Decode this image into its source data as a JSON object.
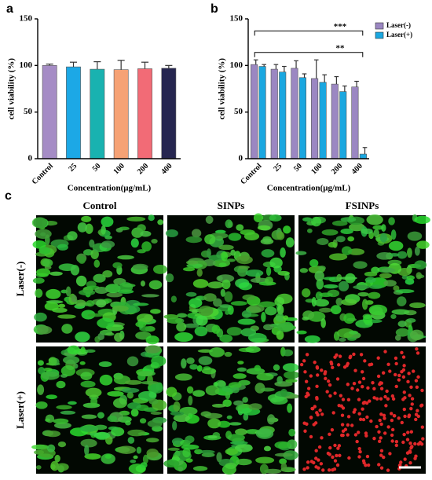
{
  "chart_data": [
    {
      "type": "bar",
      "label": "a",
      "y_label": "cell viability (%)",
      "x_label": "Concentration(μg/mL)",
      "categories": [
        "Control",
        "25",
        "50",
        "100",
        "200",
        "400"
      ],
      "values": [
        100,
        98.5,
        96,
        95.5,
        96.5,
        97
      ],
      "errors": [
        1.5,
        5,
        8,
        10,
        7,
        3
      ],
      "colors": [
        "#a58cc5",
        "#1ca8e6",
        "#19b2b0",
        "#f6a275",
        "#f26b76",
        "#262650"
      ],
      "ylim": [
        0,
        150
      ],
      "yticks": [
        0,
        50,
        100,
        150
      ]
    },
    {
      "type": "grouped_bar",
      "label": "b",
      "y_label": "cell viability (%)",
      "x_label": "Concentration(μg/mL)",
      "categories": [
        "Control",
        "25",
        "50",
        "100",
        "200",
        "400"
      ],
      "series": [
        {
          "name": "Laser(-)",
          "color": "#9b87c2",
          "values": [
            101,
            96,
            97,
            86,
            80,
            77
          ],
          "errors": [
            5,
            5,
            8,
            20,
            8,
            6
          ]
        },
        {
          "name": "Laser(+)",
          "color": "#1aa7e0",
          "values": [
            99,
            93,
            87,
            82,
            72,
            5
          ],
          "errors": [
            2,
            6,
            4,
            8,
            6,
            7
          ]
        }
      ],
      "annotations": [
        {
          "text": "***",
          "y": 137
        },
        {
          "text": "**",
          "y": 114
        }
      ],
      "legend": "upper right",
      "ylim": [
        0,
        150
      ],
      "yticks": [
        0,
        50,
        100,
        150
      ]
    }
  ],
  "panel_c": {
    "label": "c",
    "columns": [
      "Control",
      "SINPs",
      "FSINPs"
    ],
    "rows": [
      "Laser(-)",
      "Laser(+)"
    ]
  }
}
